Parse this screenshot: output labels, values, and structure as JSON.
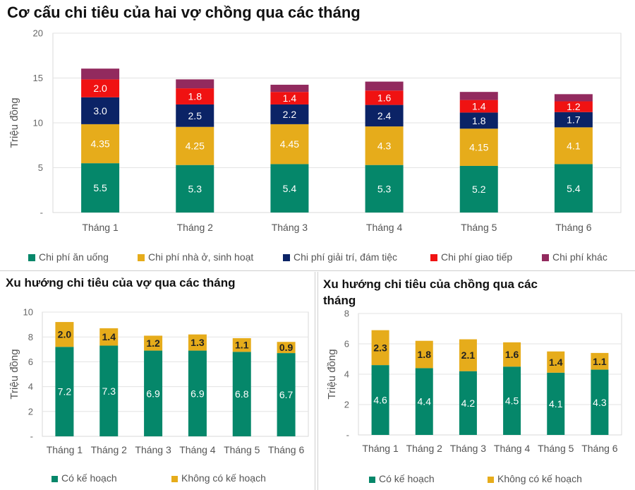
{
  "chart_data": [
    {
      "type": "bar",
      "stacked": true,
      "title": "Cơ cấu chi tiêu của hai vợ chồng qua các tháng",
      "xlabel": "",
      "ylabel": "Triệu đồng",
      "ylim": [
        0,
        20
      ],
      "yticks": [
        "-",
        "5",
        "10",
        "15",
        "20"
      ],
      "grid": true,
      "legend_position": "bottom",
      "categories": [
        "Tháng 1",
        "Tháng 2",
        "Tháng 3",
        "Tháng 4",
        "Tháng 5",
        "Tháng 6"
      ],
      "series": [
        {
          "name": "Chi phí ăn uống",
          "color": "#05876a",
          "label_color": "#ffffff",
          "values": [
            5.5,
            5.3,
            5.4,
            5.3,
            5.2,
            5.4
          ],
          "labels": [
            "5.5",
            "5.3",
            "5.4",
            "5.3",
            "5.2",
            "5.4"
          ]
        },
        {
          "name": "Chi phí nhà ở, sinh hoạt",
          "color": "#e6ac1b",
          "label_color": "#ffffff",
          "values": [
            4.35,
            4.25,
            4.45,
            4.3,
            4.15,
            4.1
          ],
          "labels": [
            "4.35",
            "4.25",
            "4.45",
            "4.3",
            "4.15",
            "4.1"
          ]
        },
        {
          "name": "Chi phí giải trí, đám tiệc",
          "color": "#0b2366",
          "label_color": "#ffffff",
          "values": [
            3.0,
            2.5,
            2.2,
            2.4,
            1.8,
            1.7
          ],
          "labels": [
            "3.0",
            "2.5",
            "2.2",
            "2.4",
            "1.8",
            "1.7"
          ]
        },
        {
          "name": "Chi phí giao tiếp",
          "color": "#f01212",
          "label_color": "#ffffff",
          "values": [
            2.0,
            1.8,
            1.4,
            1.6,
            1.4,
            1.2
          ],
          "labels": [
            "2.0",
            "1.8",
            "1.4",
            "1.6",
            "1.4",
            "1.2"
          ]
        },
        {
          "name": "Chi phí khác",
          "color": "#922a5e",
          "label_color": "#ffffff",
          "values": [
            1.2,
            1.0,
            0.8,
            1.0,
            0.9,
            0.8
          ],
          "labels": [
            "",
            "",
            "",
            "",
            "",
            ""
          ]
        }
      ]
    },
    {
      "type": "bar",
      "stacked": true,
      "title": "Xu hướng chi tiêu của vợ qua các tháng",
      "xlabel": "",
      "ylabel": "Triệu đồng",
      "ylim": [
        0,
        10
      ],
      "yticks": [
        "-",
        "2",
        "4",
        "6",
        "8",
        "10"
      ],
      "grid": true,
      "legend_position": "bottom",
      "categories": [
        "Tháng 1",
        "Tháng 2",
        "Tháng 3",
        "Tháng 4",
        "Tháng 5",
        "Tháng 6"
      ],
      "series": [
        {
          "name": "Có kế hoạch",
          "color": "#05876a",
          "label_color": "#ffffff",
          "values": [
            7.2,
            7.3,
            6.9,
            6.9,
            6.8,
            6.7
          ],
          "labels": [
            "7.2",
            "7.3",
            "6.9",
            "6.9",
            "6.8",
            "6.7"
          ]
        },
        {
          "name": "Không có kế hoạch",
          "color": "#e6ac1b",
          "label_color": "#222222",
          "values": [
            2.0,
            1.4,
            1.2,
            1.3,
            1.1,
            0.9
          ],
          "labels": [
            "2.0",
            "1.4",
            "1.2",
            "1.3",
            "1.1",
            "0.9"
          ]
        }
      ]
    },
    {
      "type": "bar",
      "stacked": true,
      "title": "Xu hướng chi tiêu của chồng qua các tháng",
      "xlabel": "",
      "ylabel": "Triệu đồng",
      "ylim": [
        0,
        8
      ],
      "yticks": [
        "-",
        "2",
        "4",
        "6",
        "8"
      ],
      "grid": true,
      "legend_position": "bottom",
      "categories": [
        "Tháng 1",
        "Tháng 2",
        "Tháng 3",
        "Tháng 4",
        "Tháng 5",
        "Tháng 6"
      ],
      "series": [
        {
          "name": "Có kế hoạch",
          "color": "#05876a",
          "label_color": "#ffffff",
          "values": [
            4.6,
            4.4,
            4.2,
            4.5,
            4.1,
            4.3
          ],
          "labels": [
            "4.6",
            "4.4",
            "4.2",
            "4.5",
            "4.1",
            "4.3"
          ]
        },
        {
          "name": "Không có kế hoạch",
          "color": "#e6ac1b",
          "label_color": "#222222",
          "values": [
            2.3,
            1.8,
            2.1,
            1.6,
            1.4,
            1.1
          ],
          "labels": [
            "2.3",
            "1.8",
            "2.1",
            "1.6",
            "1.4",
            "1.1"
          ]
        }
      ]
    }
  ]
}
